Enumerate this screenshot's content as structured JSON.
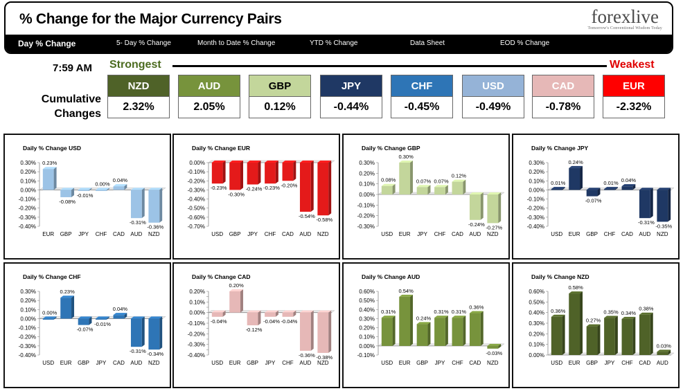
{
  "header": {
    "title": "% Change for the Major Currency Pairs",
    "logo": "forexlive",
    "logo_tagline": "Tomorrow's Conventional Wisdom Today"
  },
  "nav": [
    {
      "label": "Day % Change",
      "active": true
    },
    {
      "label": "5- Day % Change",
      "active": false
    },
    {
      "label": "Month to Date % Change",
      "active": false
    },
    {
      "label": "YTD % Change",
      "active": false
    },
    {
      "label": "Data Sheet",
      "active": false
    },
    {
      "label": "EOD % Change",
      "active": false
    }
  ],
  "summary": {
    "time": "7:59 AM",
    "strongest_label": "Strongest",
    "weakest_label": "Weakest",
    "cumulative_label_line1": "Cumulative",
    "cumulative_label_line2": "Changes",
    "tiles": [
      {
        "currency": "NZD",
        "value": "2.32%",
        "color": "#4f6228"
      },
      {
        "currency": "AUD",
        "value": "2.05%",
        "color": "#77933c"
      },
      {
        "currency": "GBP",
        "value": "0.12%",
        "color": "#c3d69b",
        "text_color": "#000000"
      },
      {
        "currency": "JPY",
        "value": "-0.44%",
        "color": "#1f3864"
      },
      {
        "currency": "CHF",
        "value": "-0.45%",
        "color": "#2e75b6"
      },
      {
        "currency": "USD",
        "value": "-0.49%",
        "color": "#95b3d7"
      },
      {
        "currency": "CAD",
        "value": "-0.78%",
        "color": "#e6b8b7"
      },
      {
        "currency": "EUR",
        "value": "-2.32%",
        "color": "#ff0000"
      }
    ]
  },
  "chart_data": [
    {
      "type": "bar",
      "title": "Daily % Change USD",
      "categories": [
        "EUR",
        "GBP",
        "JPY",
        "CHF",
        "CAD",
        "AUD",
        "NZD"
      ],
      "values": [
        0.23,
        -0.08,
        -0.01,
        0.0,
        0.04,
        -0.31,
        -0.36
      ],
      "labels": [
        "0.23%",
        "-0.08%",
        "-0.01%",
        "0.00%",
        "0.04%",
        "-0.31%",
        "-0.36%"
      ],
      "ylim": [
        -0.4,
        0.3
      ],
      "ticks": [
        0.3,
        0.2,
        0.1,
        0.0,
        -0.1,
        -0.2,
        -0.3,
        -0.4
      ],
      "tick_labels": [
        "0.30%",
        "0.20%",
        "0.10%",
        "0.00%",
        "-0.10%",
        "-0.20%",
        "-0.30%",
        "-0.40%"
      ],
      "color": "#9cc3e6"
    },
    {
      "type": "bar",
      "title": "Daily % Change EUR",
      "categories": [
        "USD",
        "GBP",
        "JPY",
        "CHF",
        "CAD",
        "AUD",
        "NZD"
      ],
      "values": [
        -0.23,
        -0.3,
        -0.24,
        -0.23,
        -0.2,
        -0.54,
        -0.58
      ],
      "labels": [
        "-0.23%",
        "-0.30%",
        "-0.24%",
        "-0.23%",
        "-0.20%",
        "-0.54%",
        "-0.58%"
      ],
      "ylim": [
        -0.7,
        0.0
      ],
      "ticks": [
        0.0,
        -0.1,
        -0.2,
        -0.3,
        -0.4,
        -0.5,
        -0.6,
        -0.7
      ],
      "tick_labels": [
        "0.00%",
        "-0.10%",
        "-0.20%",
        "-0.30%",
        "-0.40%",
        "-0.50%",
        "-0.60%",
        "-0.70%"
      ],
      "color": "#e41a1a"
    },
    {
      "type": "bar",
      "title": "Daily % Change GBP",
      "categories": [
        "USD",
        "EUR",
        "JPY",
        "CHF",
        "CAD",
        "AUD",
        "NZD"
      ],
      "values": [
        0.08,
        0.3,
        0.07,
        0.07,
        0.12,
        -0.24,
        -0.27
      ],
      "labels": [
        "0.08%",
        "0.30%",
        "0.07%",
        "0.07%",
        "0.12%",
        "-0.24%",
        "-0.27%"
      ],
      "ylim": [
        -0.3,
        0.3
      ],
      "ticks": [
        0.3,
        0.2,
        0.1,
        0.0,
        -0.1,
        -0.2,
        -0.3
      ],
      "tick_labels": [
        "0.30%",
        "0.20%",
        "0.10%",
        "0.00%",
        "-0.10%",
        "-0.20%",
        "-0.30%"
      ],
      "color": "#c3d69b"
    },
    {
      "type": "bar",
      "title": "Daily % Change JPY",
      "categories": [
        "USD",
        "EUR",
        "GBP",
        "CHF",
        "CAD",
        "AUD",
        "NZD"
      ],
      "values": [
        0.01,
        0.24,
        -0.07,
        0.01,
        0.04,
        -0.31,
        -0.35
      ],
      "labels": [
        "0.01%",
        "0.24%",
        "-0.07%",
        "0.01%",
        "0.04%",
        "-0.31%",
        "-0.35%"
      ],
      "ylim": [
        -0.4,
        0.3
      ],
      "ticks": [
        0.3,
        0.2,
        0.1,
        0.0,
        -0.1,
        -0.2,
        -0.3,
        -0.4
      ],
      "tick_labels": [
        "0.30%",
        "0.20%",
        "0.10%",
        "0.00%",
        "-0.10%",
        "-0.20%",
        "-0.30%",
        "-0.40%"
      ],
      "color": "#1f3864"
    },
    {
      "type": "bar",
      "title": "Daily % Change CHF",
      "categories": [
        "USD",
        "EUR",
        "GBP",
        "JPY",
        "CAD",
        "AUD",
        "NZD"
      ],
      "values": [
        0.0,
        0.23,
        -0.07,
        -0.01,
        0.04,
        -0.31,
        -0.34
      ],
      "labels": [
        "0.00%",
        "0.23%",
        "-0.07%",
        "-0.01%",
        "0.04%",
        "-0.31%",
        "-0.34%"
      ],
      "ylim": [
        -0.4,
        0.3
      ],
      "ticks": [
        0.3,
        0.2,
        0.1,
        0.0,
        -0.1,
        -0.2,
        -0.3,
        -0.4
      ],
      "tick_labels": [
        "0.30%",
        "0.20%",
        "0.10%",
        "0.00%",
        "-0.10%",
        "-0.20%",
        "-0.30%",
        "-0.40%"
      ],
      "color": "#2e75b6"
    },
    {
      "type": "bar",
      "title": "Daily % Change CAD",
      "categories": [
        "USD",
        "EUR",
        "GBP",
        "JPY",
        "CHF",
        "AUD",
        "NZD"
      ],
      "values": [
        -0.04,
        0.2,
        -0.12,
        -0.04,
        -0.04,
        -0.36,
        -0.38
      ],
      "labels": [
        "-0.04%",
        "0.20%",
        "-0.12%",
        "-0.04%",
        "-0.04%",
        "-0.36%",
        "-0.38%"
      ],
      "ylim": [
        -0.4,
        0.2
      ],
      "ticks": [
        0.2,
        0.15,
        0.1,
        0.05,
        0.0,
        -0.05,
        -0.1,
        -0.15,
        -0.2,
        -0.25,
        -0.3,
        -0.35,
        -0.4
      ],
      "tick_labels": [
        "0.20%",
        "",
        "0.10%",
        "",
        "0.00%",
        "",
        "-0.10%",
        "",
        "-0.20%",
        "",
        "-0.30%",
        "",
        "-0.40%"
      ],
      "color": "#e6b8b7"
    },
    {
      "type": "bar",
      "title": "Daily % Change AUD",
      "categories": [
        "USD",
        "EUR",
        "GBP",
        "JPY",
        "CHF",
        "CAD",
        "NZD"
      ],
      "values": [
        0.31,
        0.54,
        0.24,
        0.31,
        0.31,
        0.36,
        -0.03
      ],
      "labels": [
        "0.31%",
        "0.54%",
        "0.24%",
        "0.31%",
        "0.31%",
        "0.36%",
        "-0.03%"
      ],
      "ylim": [
        -0.1,
        0.6
      ],
      "ticks": [
        0.6,
        0.5,
        0.4,
        0.3,
        0.2,
        0.1,
        0.0,
        -0.1
      ],
      "tick_labels": [
        "0.60%",
        "0.50%",
        "0.40%",
        "0.30%",
        "0.20%",
        "0.10%",
        "0.00%",
        "-0.10%"
      ],
      "color": "#77933c"
    },
    {
      "type": "bar",
      "title": "Daily % Change NZD",
      "categories": [
        "USD",
        "EUR",
        "GBP",
        "JPY",
        "CHF",
        "CAD",
        "AUD"
      ],
      "values": [
        0.36,
        0.58,
        0.27,
        0.35,
        0.34,
        0.38,
        0.03
      ],
      "labels": [
        "0.36%",
        "0.58%",
        "0.27%",
        "0.35%",
        "0.34%",
        "0.38%",
        "0.03%"
      ],
      "ylim": [
        0.0,
        0.6
      ],
      "ticks": [
        0.6,
        0.5,
        0.4,
        0.3,
        0.2,
        0.1,
        0.0
      ],
      "tick_labels": [
        "0.60%",
        "0.50%",
        "0.40%",
        "0.30%",
        "0.20%",
        "0.10%",
        "0.00%"
      ],
      "color": "#4f6228"
    }
  ]
}
